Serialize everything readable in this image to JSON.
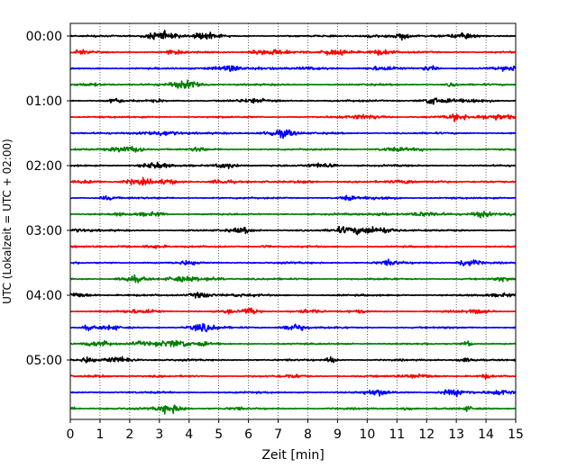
{
  "chart_data": {
    "type": "line",
    "subtype": "seismogram-helicorder",
    "xlabel": "Zeit  [min]",
    "ylabel": "UTC (Lokalzeit = UTC + 02:00)",
    "xlim": [
      0,
      15
    ],
    "x_ticks": [
      0,
      1,
      2,
      3,
      4,
      5,
      6,
      7,
      8,
      9,
      10,
      11,
      12,
      13,
      14,
      15
    ],
    "x_tick_labels": [
      "0",
      "1",
      "2",
      "3",
      "4",
      "5",
      "6",
      "7",
      "8",
      "9",
      "10",
      "11",
      "12",
      "13",
      "14",
      "15"
    ],
    "y_tick_labels": [
      "00:00",
      "01:00",
      "02:00",
      "03:00",
      "04:00",
      "05:00"
    ],
    "grid": "vertical dotted at each minute",
    "trace_interval_min": 15,
    "trace_count": 24,
    "color_cycle": [
      "#000000",
      "#ff0000",
      "#0000ff",
      "#008000"
    ]
  }
}
